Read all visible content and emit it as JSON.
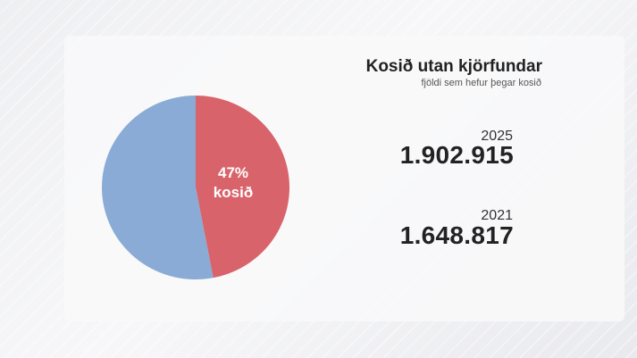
{
  "title": "Kosið utan kjörfundar",
  "subtitle": "fjöldi sem hefur þegar kosið",
  "pie_label": {
    "line1": "47%",
    "line2": "kosið"
  },
  "stats": [
    {
      "year": "2025",
      "value": "1.902.915"
    },
    {
      "year": "2021",
      "value": "1.648.817"
    }
  ],
  "chart_data": {
    "type": "pie",
    "slices": [
      {
        "label": "kosið",
        "value": 47,
        "color": "#d9636b"
      },
      {
        "label": "",
        "value": 53,
        "color": "#89abd5"
      }
    ]
  }
}
